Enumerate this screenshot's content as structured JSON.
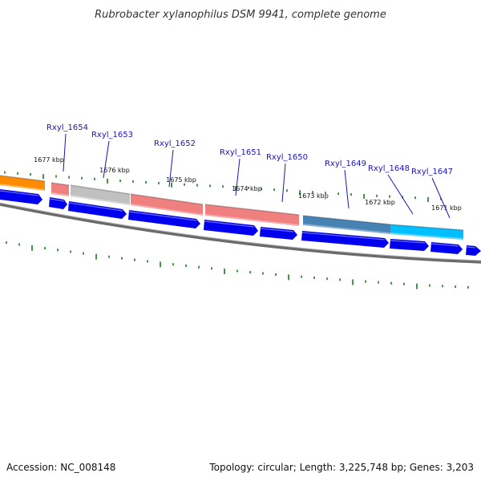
{
  "title": "Rubrobacter xylanophilus DSM 9941, complete genome",
  "footer": {
    "accession": "Accession: NC_008148",
    "summary": "Topology: circular; Length: 3,225,748 bp; Genes: 3,203"
  },
  "colors": {
    "background": "#ffffff",
    "backbone": "#808080",
    "cds_arrow": "#0000ee",
    "tick": "#1a7a1a",
    "gene_label": "#1a14b8",
    "leader_line": "#1a14b8",
    "features": [
      "#ff8c00",
      "#f08080",
      "#c0c0c0",
      "#f08080",
      "#f08080",
      "#4682b4",
      "#00bfff"
    ]
  },
  "coordinate_ticks": [
    {
      "label": "1677 kbp"
    },
    {
      "label": "1676 kbp"
    },
    {
      "label": "1675 kbp"
    },
    {
      "label": "1674 kbp"
    },
    {
      "label": "1673 kbp"
    },
    {
      "label": "1672 kbp"
    },
    {
      "label": "1671 kbp"
    }
  ],
  "genes": [
    {
      "label": "Rxyl_1654",
      "icon": "gene-label-link"
    },
    {
      "label": "Rxyl_1653",
      "icon": "gene-label-link"
    },
    {
      "label": "Rxyl_1652",
      "icon": "gene-label-link"
    },
    {
      "label": "Rxyl_1651",
      "icon": "gene-label-link"
    },
    {
      "label": "Rxyl_1650",
      "icon": "gene-label-link"
    },
    {
      "label": "Rxyl_1649",
      "icon": "gene-label-link"
    },
    {
      "label": "Rxyl_1648",
      "icon": "gene-label-link"
    },
    {
      "label": "Rxyl_1647",
      "icon": "gene-label-link"
    }
  ]
}
